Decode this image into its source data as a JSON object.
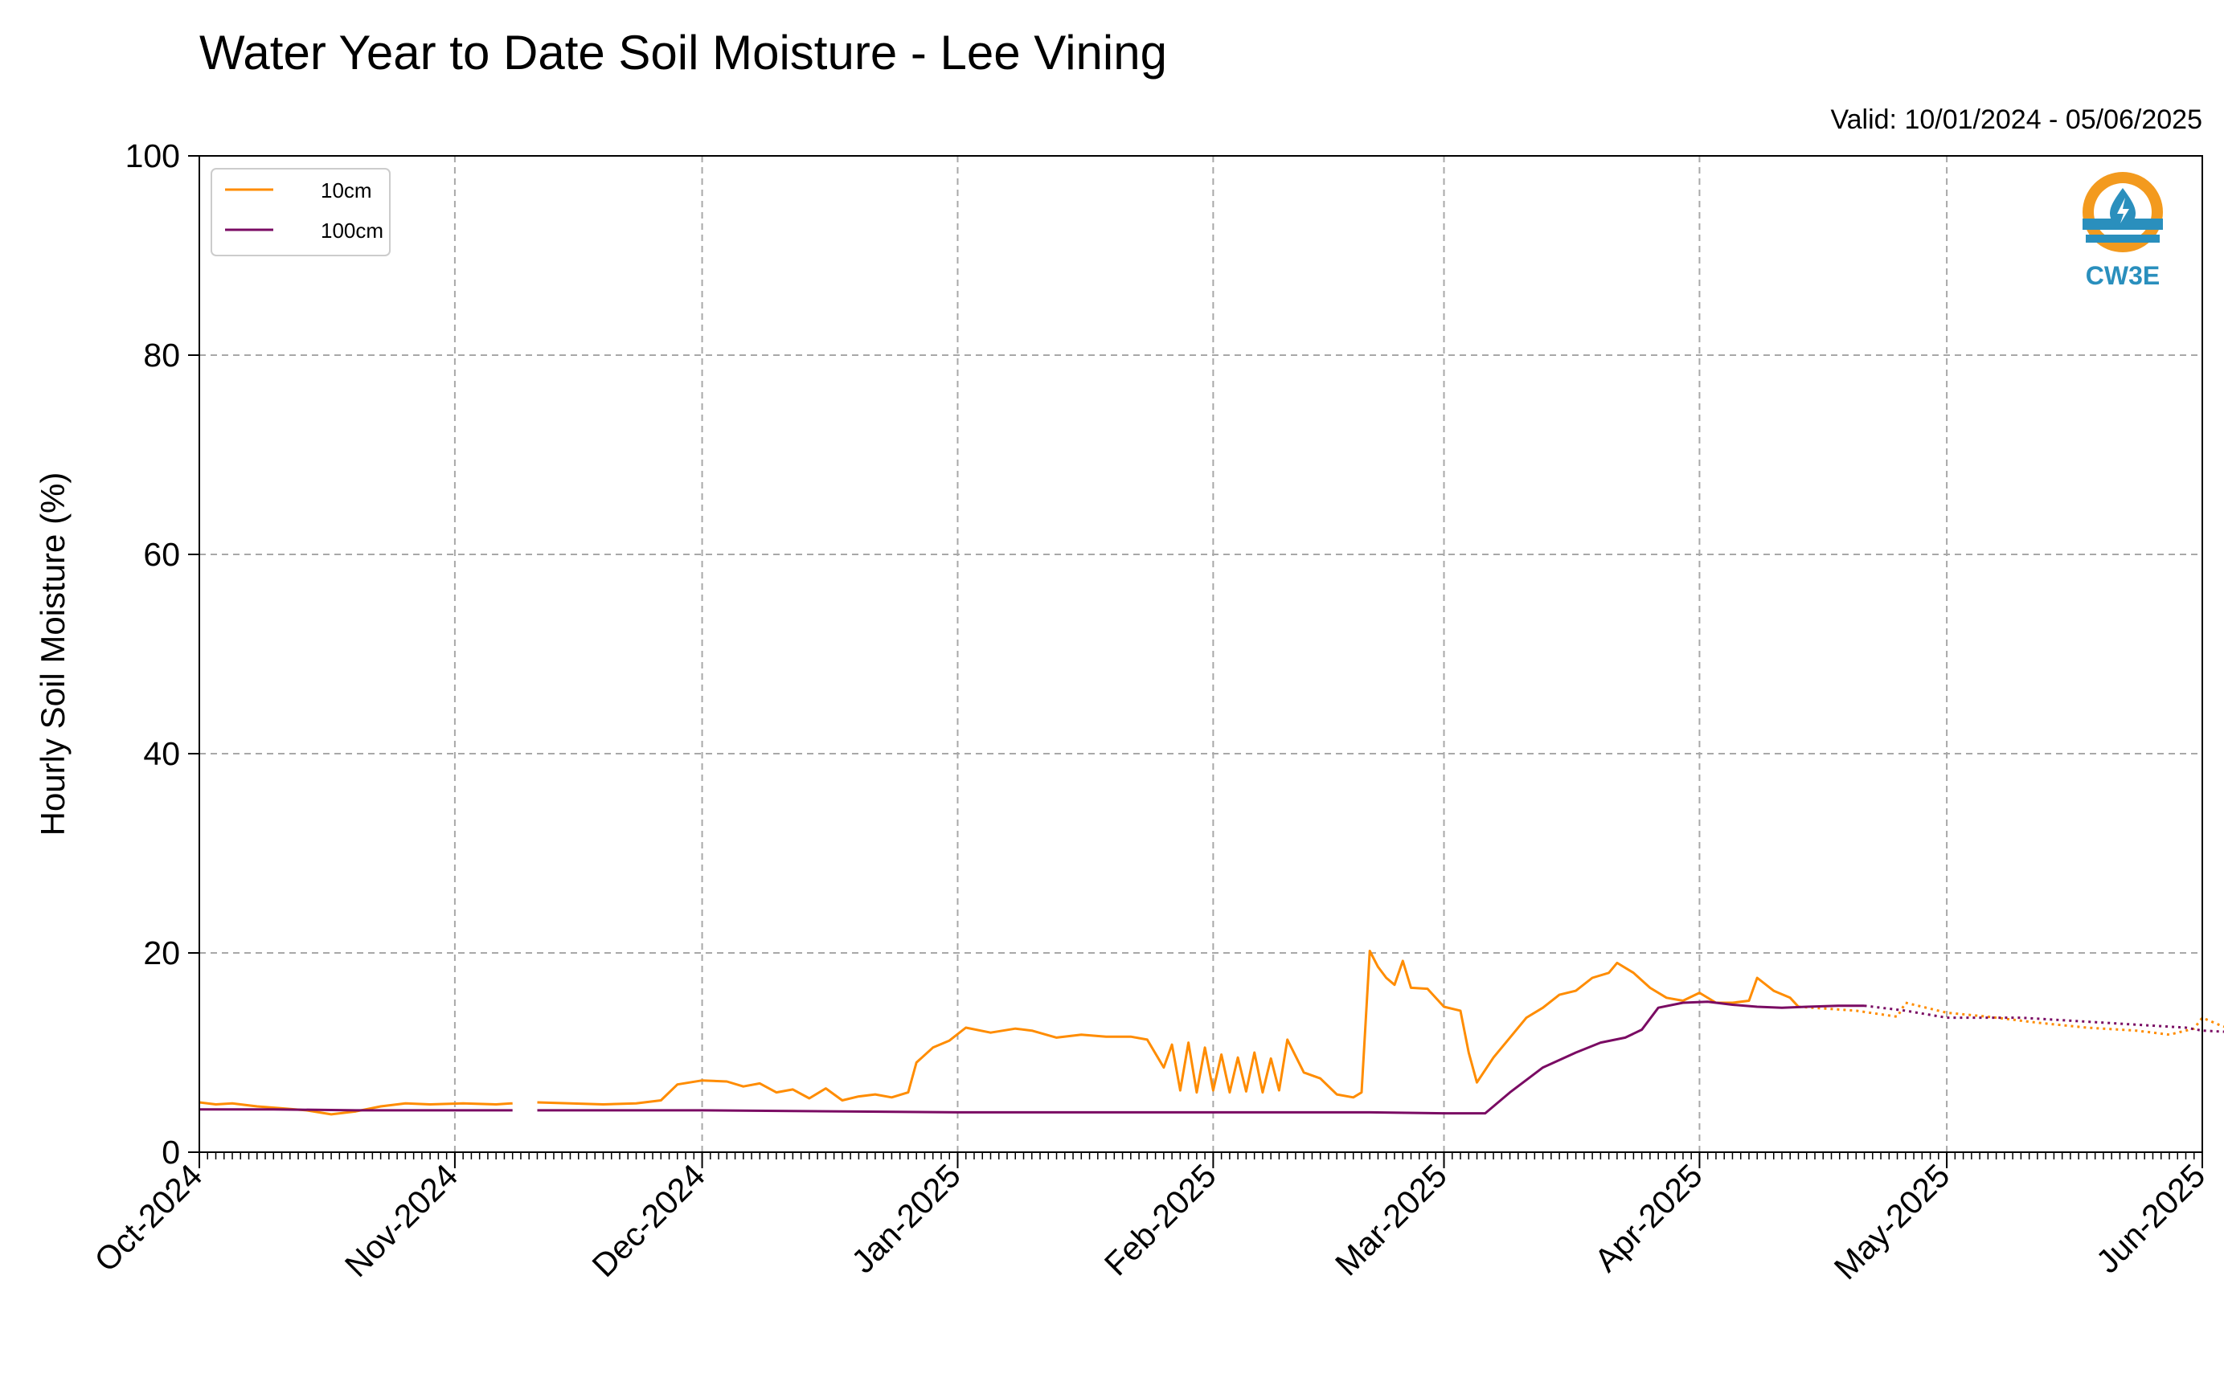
{
  "chart_data": {
    "type": "line",
    "title": "Water Year to Date Soil Moisture - Lee Vining",
    "subtitle": "Valid: 10/01/2024 - 05/06/2025",
    "xlabel": "",
    "ylabel": "Hourly Soil Moisture (%)",
    "ylim": [
      0,
      100
    ],
    "y_ticks": [
      "0",
      "20",
      "40",
      "60",
      "80",
      "100"
    ],
    "x_ticks": [
      {
        "date": "2024-10-01",
        "label": "Oct-2024"
      },
      {
        "date": "2024-11-01",
        "label": "Nov-2024"
      },
      {
        "date": "2024-12-01",
        "label": "Dec-2024"
      },
      {
        "date": "2025-01-01",
        "label": "Jan-2025"
      },
      {
        "date": "2025-02-01",
        "label": "Feb-2025"
      },
      {
        "date": "2025-03-01",
        "label": "Mar-2025"
      },
      {
        "date": "2025-04-01",
        "label": "Apr-2025"
      },
      {
        "date": "2025-05-01",
        "label": "May-2025"
      },
      {
        "date": "2025-06-01",
        "label": "Jun-2025"
      }
    ],
    "xlim": [
      "2024-10-01",
      "2025-06-01"
    ],
    "grid": true,
    "legend_position": "top-left",
    "series": [
      {
        "name": "10cm",
        "color": "#ff8c00",
        "points": [
          [
            "2024-10-01",
            5.0
          ],
          [
            "2024-10-03",
            4.8
          ],
          [
            "2024-10-05",
            4.9
          ],
          [
            "2024-10-08",
            4.6
          ],
          [
            "2024-10-11",
            4.4
          ],
          [
            "2024-10-14",
            4.2
          ],
          [
            "2024-10-17",
            3.8
          ],
          [
            "2024-10-20",
            4.1
          ],
          [
            "2024-10-23",
            4.6
          ],
          [
            "2024-10-26",
            4.9
          ],
          [
            "2024-10-29",
            4.8
          ],
          [
            "2024-11-02",
            4.9
          ],
          [
            "2024-11-06",
            4.8
          ],
          [
            "2024-11-08",
            4.9
          ],
          [
            "2024-11-09",
            null
          ],
          [
            "2024-11-11",
            5.0
          ],
          [
            "2024-11-15",
            4.9
          ],
          [
            "2024-11-19",
            4.8
          ],
          [
            "2024-11-23",
            4.9
          ],
          [
            "2024-11-26",
            5.2
          ],
          [
            "2024-11-28",
            6.8
          ],
          [
            "2024-12-01",
            7.2
          ],
          [
            "2024-12-04",
            7.1
          ],
          [
            "2024-12-06",
            6.6
          ],
          [
            "2024-12-08",
            6.9
          ],
          [
            "2024-12-10",
            6.0
          ],
          [
            "2024-12-12",
            6.3
          ],
          [
            "2024-12-14",
            5.4
          ],
          [
            "2024-12-16",
            6.4
          ],
          [
            "2024-12-18",
            5.2
          ],
          [
            "2024-12-20",
            5.6
          ],
          [
            "2024-12-22",
            5.8
          ],
          [
            "2024-12-24",
            5.5
          ],
          [
            "2024-12-26",
            6.0
          ],
          [
            "2024-12-27",
            9.0
          ],
          [
            "2024-12-29",
            10.5
          ],
          [
            "2024-12-31",
            11.2
          ],
          [
            "2025-01-02",
            12.5
          ],
          [
            "2025-01-05",
            12.0
          ],
          [
            "2025-01-08",
            12.4
          ],
          [
            "2025-01-10",
            12.2
          ],
          [
            "2025-01-13",
            11.5
          ],
          [
            "2025-01-16",
            11.8
          ],
          [
            "2025-01-19",
            11.6
          ],
          [
            "2025-01-22",
            11.6
          ],
          [
            "2025-01-24",
            11.3
          ],
          [
            "2025-01-26",
            8.5
          ],
          [
            "2025-01-27",
            10.8
          ],
          [
            "2025-01-28",
            6.2
          ],
          [
            "2025-01-29",
            11.0
          ],
          [
            "2025-01-30",
            6.0
          ],
          [
            "2025-01-31",
            10.5
          ],
          [
            "2025-02-01",
            6.2
          ],
          [
            "2025-02-02",
            9.8
          ],
          [
            "2025-02-03",
            6.0
          ],
          [
            "2025-02-04",
            9.5
          ],
          [
            "2025-02-05",
            6.1
          ],
          [
            "2025-02-06",
            10.0
          ],
          [
            "2025-02-07",
            6.0
          ],
          [
            "2025-02-08",
            9.4
          ],
          [
            "2025-02-09",
            6.2
          ],
          [
            "2025-02-10",
            11.3
          ],
          [
            "2025-02-12",
            8.0
          ],
          [
            "2025-02-14",
            7.4
          ],
          [
            "2025-02-16",
            5.8
          ],
          [
            "2025-02-18",
            5.5
          ],
          [
            "2025-02-19",
            6.0
          ],
          [
            "2025-02-20",
            20.2
          ],
          [
            "2025-02-21",
            18.6
          ],
          [
            "2025-02-22",
            17.5
          ],
          [
            "2025-02-23",
            16.8
          ],
          [
            "2025-02-24",
            19.2
          ],
          [
            "2025-02-25",
            16.5
          ],
          [
            "2025-02-27",
            16.4
          ],
          [
            "2025-03-01",
            14.6
          ],
          [
            "2025-03-03",
            14.2
          ],
          [
            "2025-03-04",
            10.0
          ],
          [
            "2025-03-05",
            7.0
          ],
          [
            "2025-03-07",
            9.5
          ],
          [
            "2025-03-09",
            11.5
          ],
          [
            "2025-03-11",
            13.5
          ],
          [
            "2025-03-13",
            14.5
          ],
          [
            "2025-03-15",
            15.8
          ],
          [
            "2025-03-17",
            16.2
          ],
          [
            "2025-03-19",
            17.5
          ],
          [
            "2025-03-21",
            18.0
          ],
          [
            "2025-03-22",
            19.0
          ],
          [
            "2025-03-24",
            18.0
          ],
          [
            "2025-03-26",
            16.5
          ],
          [
            "2025-03-28",
            15.5
          ],
          [
            "2025-03-30",
            15.2
          ],
          [
            "2025-04-01",
            16.0
          ],
          [
            "2025-04-03",
            15.0
          ],
          [
            "2025-04-05",
            15.0
          ],
          [
            "2025-04-07",
            15.2
          ],
          [
            "2025-04-08",
            17.5
          ],
          [
            "2025-04-10",
            16.2
          ],
          [
            "2025-04-12",
            15.5
          ],
          [
            "2025-04-13",
            14.6
          ]
        ],
        "dotted_points": [
          [
            "2025-04-13",
            14.6
          ],
          [
            "2025-04-20",
            14.2
          ],
          [
            "2025-04-25",
            13.6
          ],
          [
            "2025-04-26",
            15.0
          ],
          [
            "2025-05-01",
            14.0
          ],
          [
            "2025-05-06",
            13.6
          ],
          [
            "2025-05-12",
            13.0
          ],
          [
            "2025-05-18",
            12.5
          ],
          [
            "2025-05-24",
            12.2
          ],
          [
            "2025-05-28",
            11.8
          ],
          [
            "2025-05-31",
            12.4
          ],
          [
            "2025-06-01",
            13.5
          ],
          [
            "2025-06-03",
            12.8
          ],
          [
            "2025-06-05",
            12.2
          ],
          [
            "2025-06-06",
            13.0
          ]
        ]
      },
      {
        "name": "100cm",
        "color": "#7a0b63",
        "points": [
          [
            "2024-10-01",
            4.3
          ],
          [
            "2024-10-10",
            4.3
          ],
          [
            "2024-10-20",
            4.2
          ],
          [
            "2024-11-08",
            4.2
          ],
          [
            "2024-11-09",
            null
          ],
          [
            "2024-11-11",
            4.2
          ],
          [
            "2024-12-01",
            4.2
          ],
          [
            "2025-01-01",
            4.0
          ],
          [
            "2025-02-01",
            4.0
          ],
          [
            "2025-02-20",
            4.0
          ],
          [
            "2025-03-01",
            3.9
          ],
          [
            "2025-03-06",
            3.9
          ],
          [
            "2025-03-09",
            6.0
          ],
          [
            "2025-03-13",
            8.5
          ],
          [
            "2025-03-17",
            10.0
          ],
          [
            "2025-03-20",
            11.0
          ],
          [
            "2025-03-23",
            11.5
          ],
          [
            "2025-03-25",
            12.3
          ],
          [
            "2025-03-27",
            14.5
          ],
          [
            "2025-03-30",
            15.0
          ],
          [
            "2025-04-02",
            15.1
          ],
          [
            "2025-04-05",
            14.8
          ],
          [
            "2025-04-08",
            14.6
          ],
          [
            "2025-04-11",
            14.5
          ],
          [
            "2025-04-14",
            14.6
          ],
          [
            "2025-04-18",
            14.7
          ],
          [
            "2025-04-21",
            14.7
          ]
        ],
        "dotted_points": [
          [
            "2025-04-21",
            14.7
          ],
          [
            "2025-04-26",
            14.2
          ],
          [
            "2025-05-01",
            13.5
          ],
          [
            "2025-05-10",
            13.5
          ],
          [
            "2025-05-20",
            13.0
          ],
          [
            "2025-05-30",
            12.5
          ],
          [
            "2025-06-01",
            12.2
          ],
          [
            "2025-06-06",
            12.0
          ]
        ]
      }
    ]
  },
  "logo": {
    "text": "CW3E",
    "primary_color": "#2a8fbd",
    "accent_color": "#f39a1e"
  }
}
